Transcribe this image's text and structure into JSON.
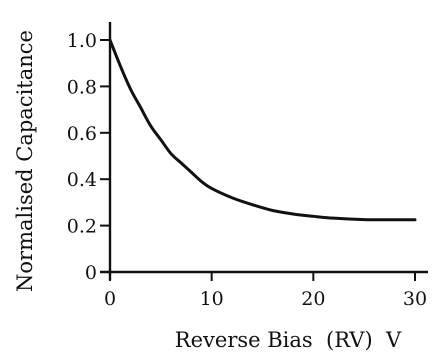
{
  "chart_data": {
    "type": "line",
    "xlabel": "Reverse Bias  (RV)  V",
    "ylabel": "Normalised Capacitance",
    "xlim": [
      0,
      30
    ],
    "ylim": [
      0,
      1.0
    ],
    "x_ticks": [
      0,
      10,
      20,
      30
    ],
    "y_ticks": [
      0,
      0.2,
      0.4,
      0.6,
      0.8,
      1.0
    ],
    "x_tick_labels": [
      "0",
      "10",
      "20",
      "30"
    ],
    "y_tick_labels": [
      "0",
      "0.2",
      "0.4",
      "0.6",
      "0.8",
      "1.0"
    ],
    "grid": false,
    "series": [
      {
        "x": [
          0,
          1,
          2,
          3,
          4,
          5,
          6,
          7,
          8,
          9,
          10,
          12,
          14,
          16,
          18,
          20,
          22,
          25,
          28,
          30
        ],
        "y": [
          1.0,
          0.89,
          0.79,
          0.71,
          0.63,
          0.57,
          0.51,
          0.47,
          0.43,
          0.39,
          0.36,
          0.32,
          0.29,
          0.265,
          0.25,
          0.24,
          0.232,
          0.226,
          0.225,
          0.225
        ]
      }
    ]
  }
}
